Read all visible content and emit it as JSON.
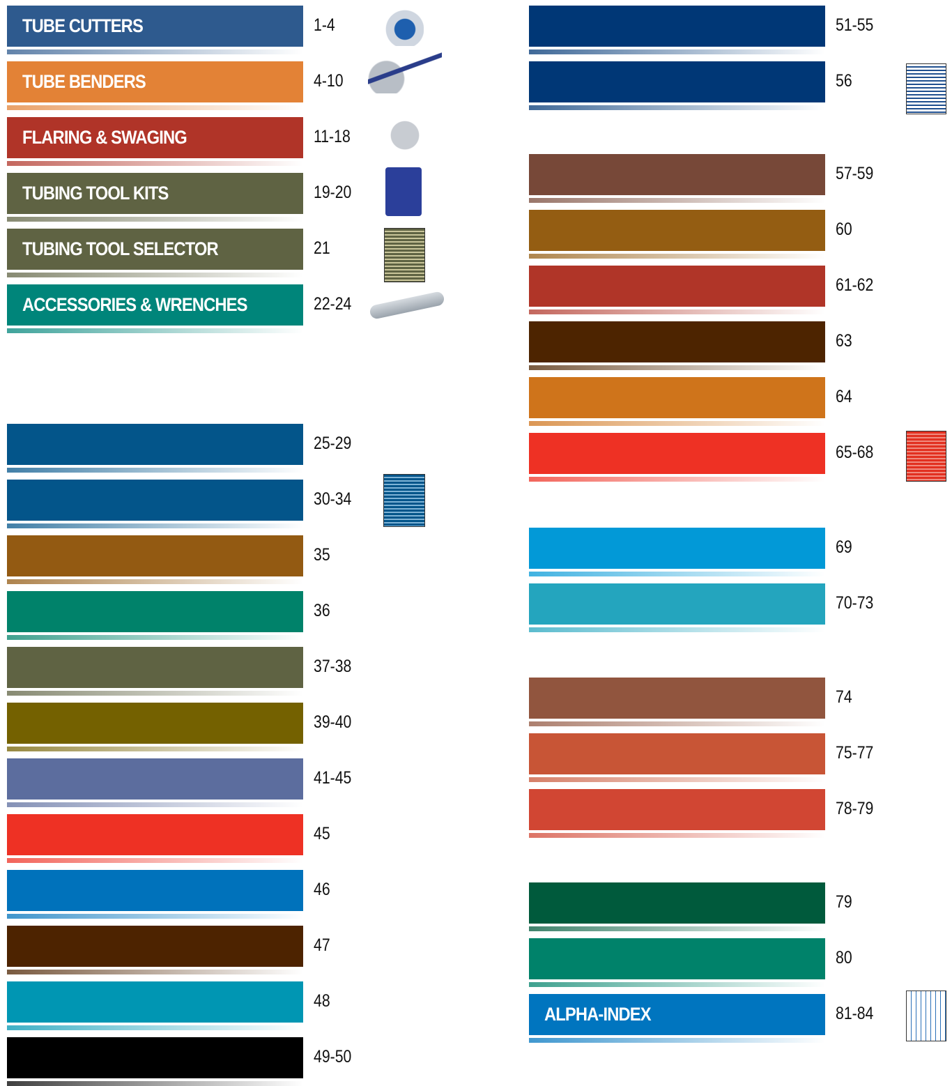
{
  "left_column": {
    "groups": [
      {
        "entries": [
          {
            "label": "TUBE CUTTERS",
            "pages": "1-4",
            "color": "#2e5a8e"
          },
          {
            "label": "TUBE BENDERS",
            "pages": "4-10",
            "color": "#e38236"
          },
          {
            "label": "FLARING & SWAGING",
            "pages": "11-18",
            "color": "#b03428"
          },
          {
            "label": "TUBING TOOL KITS",
            "pages": "19-20",
            "color": "#5f6343"
          },
          {
            "label": "TUBING TOOL SELECTOR",
            "pages": "21",
            "color": "#5f6343"
          },
          {
            "label": "ACCESSORIES & WRENCHES",
            "pages": "22-24",
            "color": "#00857a"
          }
        ]
      },
      {
        "entries": [
          {
            "pages": "25-29",
            "color": "#03558a"
          },
          {
            "pages": "30-34",
            "color": "#03558a"
          },
          {
            "pages": "35",
            "color": "#935a12"
          },
          {
            "pages": "36",
            "color": "#00826a"
          },
          {
            "pages": "37-38",
            "color": "#5f6343"
          },
          {
            "pages": "39-40",
            "color": "#746100"
          },
          {
            "pages": "41-45",
            "color": "#5c6d9e"
          },
          {
            "pages": "45",
            "color": "#ee3124"
          },
          {
            "pages": "46",
            "color": "#0072bb"
          },
          {
            "pages": "47",
            "color": "#4d2300"
          },
          {
            "pages": "48",
            "color": "#0096b3"
          },
          {
            "pages": "49-50",
            "color": "#000000"
          }
        ]
      }
    ]
  },
  "right_column": {
    "groups": [
      {
        "entries": [
          {
            "pages": "51-55",
            "color": "#003776"
          },
          {
            "pages": "56",
            "color": "#003776"
          }
        ]
      },
      {
        "entries": [
          {
            "pages": "57-59",
            "color": "#774838"
          },
          {
            "pages": "60",
            "color": "#945d12"
          },
          {
            "pages": "61-62",
            "color": "#b03528"
          },
          {
            "pages": "63",
            "color": "#4d2400"
          },
          {
            "pages": "64",
            "color": "#cf741b"
          },
          {
            "pages": "65-68",
            "color": "#ee3124"
          }
        ]
      },
      {
        "entries": [
          {
            "pages": "69",
            "color": "#0299d7"
          },
          {
            "pages": "70-73",
            "color": "#24a5be"
          }
        ]
      },
      {
        "entries": [
          {
            "pages": "74",
            "color": "#91553e"
          },
          {
            "pages": "75-77",
            "color": "#c85536"
          },
          {
            "pages": "78-79",
            "color": "#d14633"
          }
        ]
      },
      {
        "entries": [
          {
            "pages": "79",
            "color": "#005a3c"
          },
          {
            "pages": "80",
            "color": "#00826a"
          },
          {
            "label": "ALPHA-INDEX",
            "pages": "81-84",
            "color": "#0075bf"
          }
        ]
      }
    ]
  }
}
